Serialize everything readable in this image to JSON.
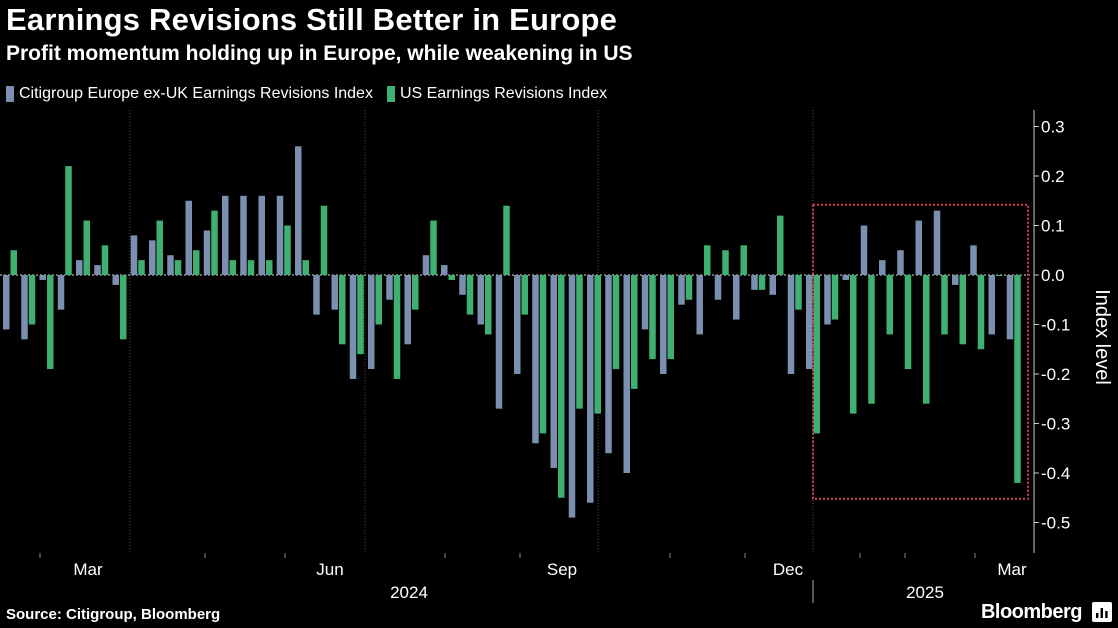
{
  "header": {
    "title": "Earnings Revisions Still Better in Europe",
    "subtitle": "Profit momentum holding up in Europe, while weakening in US"
  },
  "footer": {
    "source": "Source: Citigroup, Bloomberg",
    "brand": "Bloomberg"
  },
  "colors": {
    "background": "#000000",
    "europe": "#7b8fb0",
    "us": "#3fb071",
    "highlight_box": "#d5404f",
    "grid": "#555555",
    "text": "#ffffff"
  },
  "chart_data": {
    "type": "bar",
    "title": "Earnings Revisions Still Better in Europe",
    "subtitle": "Profit momentum holding up in Europe, while weakening in US",
    "ylabel": "Index level",
    "ylim": [
      -0.55,
      0.33
    ],
    "yticks": [
      "0.3",
      "0.2",
      "0.1",
      "0.0",
      "-0.1",
      "-0.2",
      "-0.3",
      "-0.4",
      "-0.5"
    ],
    "ytick_values": [
      0.3,
      0.2,
      0.1,
      0.0,
      -0.1,
      -0.2,
      -0.3,
      -0.4,
      -0.5
    ],
    "y_axis_position": "right",
    "grid": "vertical month gridlines, dotted",
    "legend_position": "top-left",
    "x_month_labels": [
      "Mar",
      "Jun",
      "Sep",
      "Dec",
      "Mar"
    ],
    "x_year_labels": [
      "2024",
      "2025"
    ],
    "periods": 56,
    "series": [
      {
        "name": "Citigroup Europe ex-UK Earnings Revisions Index",
        "values": [
          -0.11,
          -0.13,
          -0.01,
          -0.07,
          0.03,
          0.02,
          -0.02,
          0.08,
          0.07,
          0.04,
          0.15,
          0.09,
          0.16,
          0.16,
          0.16,
          0.16,
          0.26,
          -0.08,
          -0.07,
          -0.21,
          -0.19,
          -0.05,
          -0.14,
          0.04,
          0.02,
          -0.04,
          -0.1,
          -0.27,
          -0.2,
          -0.34,
          -0.39,
          -0.49,
          -0.46,
          -0.36,
          -0.4,
          -0.11,
          -0.2,
          -0.06,
          -0.12,
          -0.05,
          -0.09,
          -0.03,
          -0.04,
          -0.2,
          -0.19,
          -0.1,
          -0.01,
          0.1,
          0.03,
          0.05,
          0.11,
          0.13,
          -0.02,
          0.06,
          -0.12,
          -0.13
        ]
      },
      {
        "name": "US Earnings Revisions Index",
        "values": [
          0.05,
          -0.1,
          -0.19,
          0.22,
          0.11,
          0.06,
          -0.13,
          0.03,
          0.11,
          0.03,
          0.05,
          0.13,
          0.03,
          0.03,
          0.03,
          0.1,
          0.03,
          0.14,
          -0.14,
          -0.16,
          -0.1,
          -0.21,
          -0.07,
          0.11,
          -0.01,
          -0.08,
          -0.12,
          0.14,
          -0.08,
          -0.32,
          -0.45,
          -0.27,
          -0.28,
          -0.19,
          -0.23,
          -0.17,
          -0.17,
          -0.05,
          0.06,
          0.05,
          0.06,
          -0.03,
          0.12,
          -0.07,
          -0.32,
          -0.09,
          -0.28,
          -0.26,
          -0.12,
          -0.19,
          -0.26,
          -0.12,
          -0.14,
          -0.15,
          0.0,
          -0.42
        ]
      }
    ],
    "annotations": [
      {
        "type": "highlight-box",
        "style": "dotted red rectangle",
        "from_period": 46,
        "to_period": 56,
        "y_range": [
          -0.45,
          0.14
        ]
      }
    ]
  }
}
